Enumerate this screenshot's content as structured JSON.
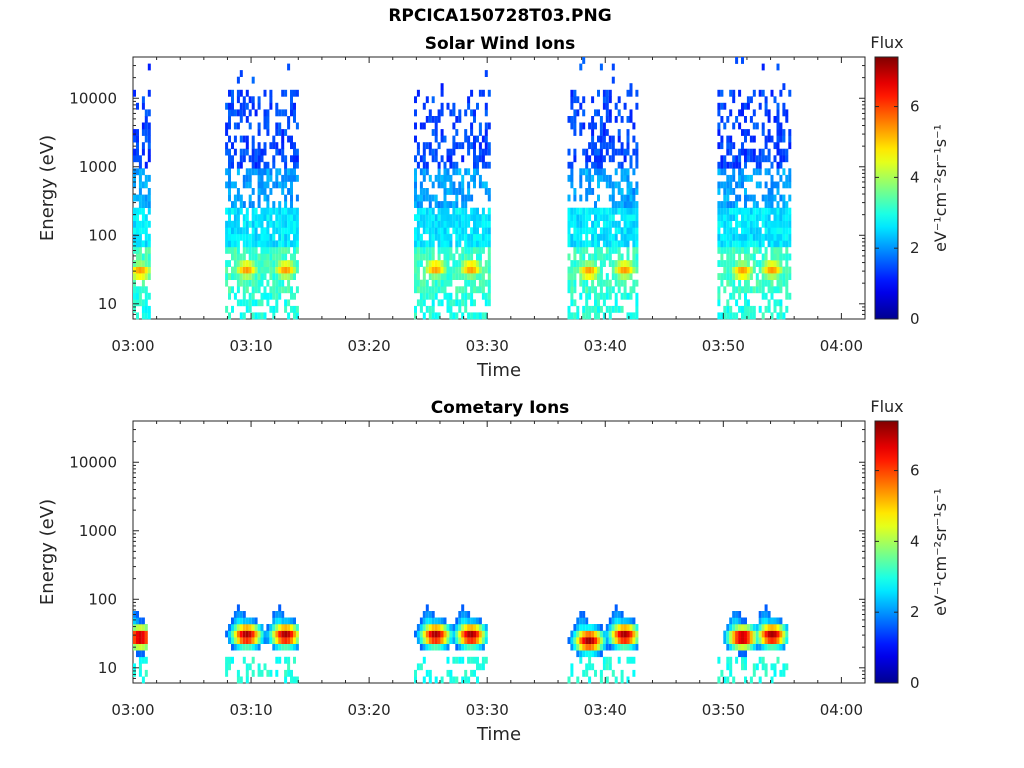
{
  "page_title": "RPCICA150728T03.PNG",
  "colormap": [
    "#00008f",
    "#0000ff",
    "#0080ff",
    "#00ffff",
    "#80ff80",
    "#ffff00",
    "#ff8000",
    "#ff0000",
    "#800000"
  ],
  "chart_data": [
    {
      "type": "heatmap",
      "title": "Solar Wind Ions",
      "xlabel": "Time",
      "ylabel": "Energy (eV)",
      "x_ticks": [
        "03:00",
        "03:10",
        "03:20",
        "03:30",
        "03:40",
        "03:50",
        "04:00"
      ],
      "x_range_minutes": [
        0,
        62
      ],
      "y_scale": "log",
      "y_range": [
        6,
        40000
      ],
      "y_ticks": [
        "10",
        "100",
        "1000",
        "10000"
      ],
      "colorbar": {
        "title": "Flux",
        "label": "eV⁻¹cm⁻²sr⁻¹s⁻¹",
        "range": [
          0,
          7.4
        ],
        "ticks": [
          "0",
          "2",
          "4",
          "6"
        ]
      },
      "bursts": [
        {
          "start": 0.0,
          "end": 1.4,
          "peaks": [
            {
              "t": 0.5,
              "e": 30
            }
          ]
        },
        {
          "start": 7.8,
          "end": 14.0,
          "peaks": [
            {
              "t": 9.5,
              "e": 32
            },
            {
              "t": 12.8,
              "e": 32
            }
          ]
        },
        {
          "start": 23.8,
          "end": 30.2,
          "peaks": [
            {
              "t": 25.5,
              "e": 33
            },
            {
              "t": 28.5,
              "e": 33
            }
          ]
        },
        {
          "start": 36.8,
          "end": 42.8,
          "peaks": [
            {
              "t": 38.5,
              "e": 30
            },
            {
              "t": 41.5,
              "e": 32
            }
          ]
        },
        {
          "start": 49.5,
          "end": 55.7,
          "peaks": [
            {
              "t": 51.5,
              "e": 30
            },
            {
              "t": 54.0,
              "e": 32
            }
          ]
        }
      ]
    },
    {
      "type": "heatmap",
      "title": "Cometary Ions",
      "xlabel": "Time",
      "ylabel": "Energy (eV)",
      "x_ticks": [
        "03:00",
        "03:10",
        "03:20",
        "03:30",
        "03:40",
        "03:50",
        "04:00"
      ],
      "x_range_minutes": [
        0,
        62
      ],
      "y_scale": "log",
      "y_range": [
        6,
        40000
      ],
      "y_ticks": [
        "10",
        "100",
        "1000",
        "10000"
      ],
      "colorbar": {
        "title": "Flux",
        "label": "eV⁻¹cm⁻²sr⁻¹s⁻¹",
        "range": [
          0,
          7.4
        ],
        "ticks": [
          "0",
          "2",
          "4",
          "6"
        ]
      },
      "bursts": [
        {
          "start": 0.0,
          "end": 1.2,
          "peaks": [
            {
              "t": 0.5,
              "e": 28
            }
          ]
        },
        {
          "start": 7.8,
          "end": 14.0,
          "peaks": [
            {
              "t": 9.5,
              "e": 30
            },
            {
              "t": 12.8,
              "e": 30
            }
          ]
        },
        {
          "start": 23.8,
          "end": 30.0,
          "peaks": [
            {
              "t": 25.5,
              "e": 30
            },
            {
              "t": 28.5,
              "e": 30
            }
          ]
        },
        {
          "start": 36.8,
          "end": 42.8,
          "peaks": [
            {
              "t": 38.5,
              "e": 25
            },
            {
              "t": 41.5,
              "e": 30
            }
          ]
        },
        {
          "start": 49.5,
          "end": 55.5,
          "peaks": [
            {
              "t": 51.5,
              "e": 28
            },
            {
              "t": 54.0,
              "e": 30
            }
          ]
        }
      ]
    }
  ]
}
